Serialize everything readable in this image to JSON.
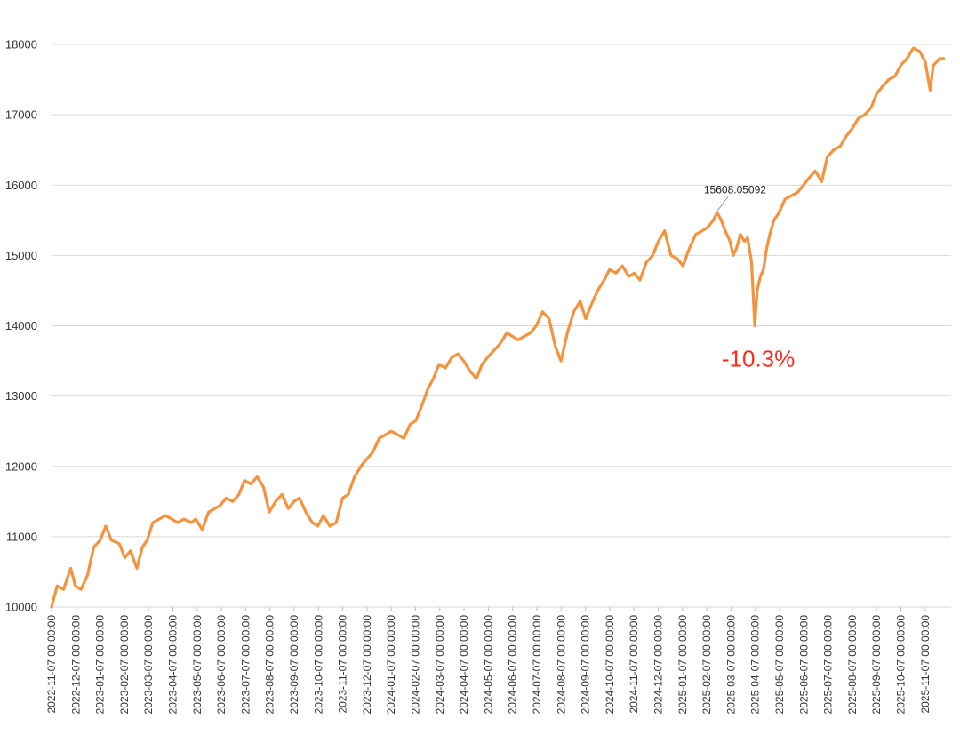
{
  "chart_data": {
    "type": "line",
    "title": "",
    "xlabel": "",
    "ylabel": "",
    "ylim": [
      10000,
      18000
    ],
    "y_ticks": [
      "10000",
      "11000",
      "12000",
      "13000",
      "14000",
      "15000",
      "16000",
      "17000",
      "18000"
    ],
    "grid": "horizontal",
    "legend": "none",
    "x_tick_labels": [
      "2022-11-07 00:00:00",
      "2022-12-07 00:00:00",
      "2023-01-07 00:00:00",
      "2023-02-07 00:00:00",
      "2023-03-07 00:00:00",
      "2023-04-07 00:00:00",
      "2023-05-07 00:00:00",
      "2023-06-07 00:00:00",
      "2023-07-07 00:00:00",
      "2023-08-07 00:00:00",
      "2023-09-07 00:00:00",
      "2023-10-07 00:00:00",
      "2023-11-07 00:00:00",
      "2023-12-07 00:00:00",
      "2024-01-07 00:00:00",
      "2024-02-07 00:00:00",
      "2024-03-07 00:00:00",
      "2024-04-07 00:00:00",
      "2024-05-07 00:00:00",
      "2024-06-07 00:00:00",
      "2024-07-07 00:00:00",
      "2024-08-07 00:00:00",
      "2024-09-07 00:00:00",
      "2024-10-07 00:00:00",
      "2024-11-07 00:00:00",
      "2024-12-07 00:00:00",
      "2025-01-07 00:00:00",
      "2025-02-07 00:00:00",
      "2025-03-07 00:00:00",
      "2025-04-07 00:00:00",
      "2025-05-07 00:00:00",
      "2025-06-07 00:00:00",
      "2025-07-07 00:00:00",
      "2025-08-07 00:00:00",
      "2025-09-07 00:00:00",
      "2025-10-07 00:00:00",
      "2025-11-07 00:00:00"
    ],
    "series": [
      {
        "color": "#f5923e",
        "x": [
          "2022-11-07",
          "2022-11-14",
          "2022-11-22",
          "2022-12-01",
          "2022-12-07",
          "2022-12-14",
          "2022-12-22",
          "2022-12-30",
          "2023-01-07",
          "2023-01-14",
          "2023-01-21",
          "2023-01-31",
          "2023-02-07",
          "2023-02-14",
          "2023-02-22",
          "2023-03-01",
          "2023-03-07",
          "2023-03-14",
          "2023-03-22",
          "2023-03-30",
          "2023-04-07",
          "2023-04-14",
          "2023-04-22",
          "2023-05-01",
          "2023-05-07",
          "2023-05-15",
          "2023-05-23",
          "2023-05-31",
          "2023-06-07",
          "2023-06-14",
          "2023-06-22",
          "2023-06-30",
          "2023-07-07",
          "2023-07-15",
          "2023-07-23",
          "2023-07-31",
          "2023-08-07",
          "2023-08-15",
          "2023-08-23",
          "2023-08-31",
          "2023-09-07",
          "2023-09-14",
          "2023-09-22",
          "2023-09-30",
          "2023-10-07",
          "2023-10-14",
          "2023-10-22",
          "2023-10-30",
          "2023-11-07",
          "2023-11-14",
          "2023-11-22",
          "2023-11-30",
          "2023-12-07",
          "2023-12-15",
          "2023-12-23",
          "2023-12-31",
          "2024-01-07",
          "2024-01-15",
          "2024-01-23",
          "2024-01-31",
          "2024-02-07",
          "2024-02-14",
          "2024-02-22",
          "2024-02-29",
          "2024-03-07",
          "2024-03-15",
          "2024-03-23",
          "2024-03-31",
          "2024-04-07",
          "2024-04-15",
          "2024-04-23",
          "2024-04-30",
          "2024-05-07",
          "2024-05-15",
          "2024-05-23",
          "2024-05-31",
          "2024-06-07",
          "2024-06-14",
          "2024-06-22",
          "2024-06-30",
          "2024-07-07",
          "2024-07-15",
          "2024-07-23",
          "2024-07-31",
          "2024-08-07",
          "2024-08-15",
          "2024-08-23",
          "2024-08-31",
          "2024-09-07",
          "2024-09-14",
          "2024-09-22",
          "2024-09-30",
          "2024-10-07",
          "2024-10-15",
          "2024-10-23",
          "2024-10-31",
          "2024-11-07",
          "2024-11-14",
          "2024-11-22",
          "2024-11-30",
          "2024-12-07",
          "2024-12-15",
          "2024-12-23",
          "2024-12-31",
          "2025-01-07",
          "2025-01-15",
          "2025-01-23",
          "2025-01-31",
          "2025-02-07",
          "2025-02-14",
          "2025-02-19",
          "2025-02-24",
          "2025-03-01",
          "2025-03-07",
          "2025-03-11",
          "2025-03-15",
          "2025-03-20",
          "2025-03-25",
          "2025-03-29",
          "2025-04-03",
          "2025-04-07",
          "2025-04-10",
          "2025-04-14",
          "2025-04-18",
          "2025-04-22",
          "2025-04-26",
          "2025-05-01",
          "2025-05-07",
          "2025-05-15",
          "2025-05-23",
          "2025-05-31",
          "2025-06-07",
          "2025-06-14",
          "2025-06-22",
          "2025-06-30",
          "2025-07-07",
          "2025-07-15",
          "2025-07-23",
          "2025-07-31",
          "2025-08-07",
          "2025-08-15",
          "2025-08-23",
          "2025-08-31",
          "2025-09-07",
          "2025-09-14",
          "2025-09-22",
          "2025-09-30",
          "2025-10-07",
          "2025-10-15",
          "2025-10-23",
          "2025-10-31",
          "2025-11-07",
          "2025-11-13",
          "2025-11-17",
          "2025-11-21",
          "2025-11-25",
          "2025-11-30"
        ],
        "y": [
          10000,
          10300,
          10250,
          10550,
          10300,
          10250,
          10450,
          10850,
          10950,
          11150,
          10950,
          10900,
          10700,
          10800,
          10550,
          10850,
          10950,
          11200,
          11250,
          11300,
          11250,
          11200,
          11250,
          11200,
          11250,
          11100,
          11350,
          11400,
          11450,
          11550,
          11500,
          11600,
          11800,
          11750,
          11850,
          11700,
          11350,
          11500,
          11600,
          11400,
          11500,
          11550,
          11350,
          11200,
          11150,
          11300,
          11150,
          11200,
          11550,
          11600,
          11850,
          12000,
          12100,
          12200,
          12400,
          12450,
          12500,
          12450,
          12400,
          12600,
          12650,
          12850,
          13100,
          13250,
          13450,
          13400,
          13550,
          13600,
          13500,
          13350,
          13250,
          13450,
          13550,
          13650,
          13750,
          13900,
          13850,
          13800,
          13850,
          13900,
          14000,
          14200,
          14100,
          13700,
          13500,
          13900,
          14200,
          14350,
          14100,
          14300,
          14500,
          14650,
          14800,
          14750,
          14850,
          14700,
          14750,
          14650,
          14900,
          15000,
          15200,
          15350,
          15000,
          14950,
          14850,
          15100,
          15300,
          15350,
          15400,
          15500,
          15608,
          15500,
          15350,
          15200,
          15000,
          15100,
          15300,
          15200,
          15250,
          14900,
          14000,
          14500,
          14700,
          14800,
          15100,
          15300,
          15500,
          15600,
          15800,
          15850,
          15900,
          16000,
          16100,
          16200,
          16050,
          16400,
          16500,
          16550,
          16700,
          16800,
          16950,
          17000,
          17100,
          17300,
          17400,
          17500,
          17550,
          17700,
          17800,
          17950,
          17900,
          17750,
          17350,
          17700,
          17750,
          17800,
          17800
        ]
      }
    ],
    "annotations": [
      {
        "text": "15608.05092",
        "x": "2025-02-19",
        "y": 15608
      },
      {
        "text": "-10.3%",
        "x": "2025-04-07",
        "y": 14000
      }
    ]
  }
}
